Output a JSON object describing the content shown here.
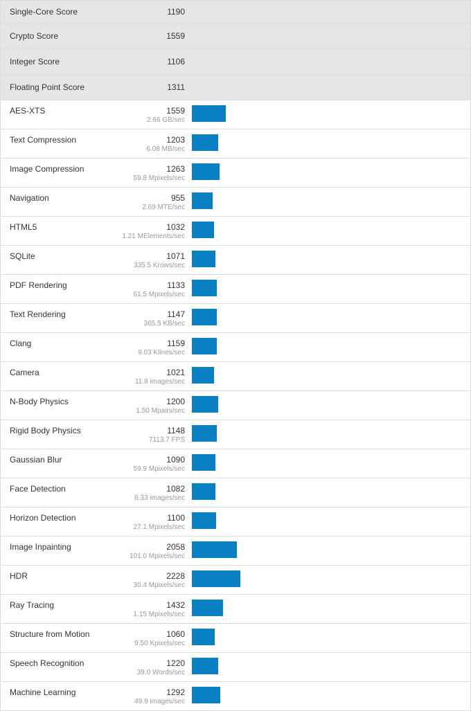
{
  "colors": {
    "bar": "#0a7fc1",
    "summary_bg": "#e6e6e6",
    "rate_text": "#999999"
  },
  "summary": [
    {
      "name": "Single-Core Score",
      "score": "1190"
    },
    {
      "name": "Crypto Score",
      "score": "1559"
    },
    {
      "name": "Integer Score",
      "score": "1106"
    },
    {
      "name": "Floating Point Score",
      "score": "1311"
    }
  ],
  "workloads": [
    {
      "name": "AES-XTS",
      "score": "1559",
      "rate": "2.66 GB/sec",
      "value": 1559
    },
    {
      "name": "Text Compression",
      "score": "1203",
      "rate": "6.08 MB/sec",
      "value": 1203
    },
    {
      "name": "Image Compression",
      "score": "1263",
      "rate": "59.8 Mpixels/sec",
      "value": 1263
    },
    {
      "name": "Navigation",
      "score": "955",
      "rate": "2.69 MTE/sec",
      "value": 955
    },
    {
      "name": "HTML5",
      "score": "1032",
      "rate": "1.21 MElements/sec",
      "value": 1032
    },
    {
      "name": "SQLite",
      "score": "1071",
      "rate": "335.5 Krows/sec",
      "value": 1071
    },
    {
      "name": "PDF Rendering",
      "score": "1133",
      "rate": "61.5 Mpixels/sec",
      "value": 1133
    },
    {
      "name": "Text Rendering",
      "score": "1147",
      "rate": "365.5 KB/sec",
      "value": 1147
    },
    {
      "name": "Clang",
      "score": "1159",
      "rate": "9.03 Klines/sec",
      "value": 1159
    },
    {
      "name": "Camera",
      "score": "1021",
      "rate": "11.8 images/sec",
      "value": 1021
    },
    {
      "name": "N-Body Physics",
      "score": "1200",
      "rate": "1.50 Mpairs/sec",
      "value": 1200
    },
    {
      "name": "Rigid Body Physics",
      "score": "1148",
      "rate": "7113.7 FPS",
      "value": 1148
    },
    {
      "name": "Gaussian Blur",
      "score": "1090",
      "rate": "59.9 Mpixels/sec",
      "value": 1090
    },
    {
      "name": "Face Detection",
      "score": "1082",
      "rate": "8.33 images/sec",
      "value": 1082
    },
    {
      "name": "Horizon Detection",
      "score": "1100",
      "rate": "27.1 Mpixels/sec",
      "value": 1100
    },
    {
      "name": "Image Inpainting",
      "score": "2058",
      "rate": "101.0 Mpixels/sec",
      "value": 2058
    },
    {
      "name": "HDR",
      "score": "2228",
      "rate": "30.4 Mpixels/sec",
      "value": 2228
    },
    {
      "name": "Ray Tracing",
      "score": "1432",
      "rate": "1.15 Mpixels/sec",
      "value": 1432
    },
    {
      "name": "Structure from Motion",
      "score": "1060",
      "rate": "9.50 Kpixels/sec",
      "value": 1060
    },
    {
      "name": "Speech Recognition",
      "score": "1220",
      "rate": "39.0 Words/sec",
      "value": 1220
    },
    {
      "name": "Machine Learning",
      "score": "1292",
      "rate": "49.9 images/sec",
      "value": 1292
    }
  ]
}
